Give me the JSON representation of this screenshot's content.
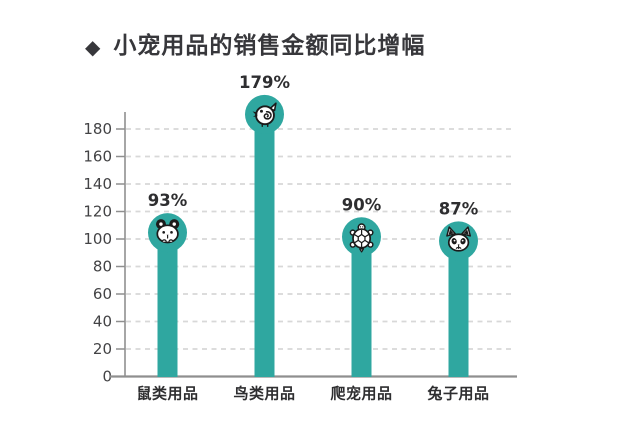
{
  "title": {
    "bullet": "◆",
    "text": "小宠用品的销售金额同比增幅"
  },
  "chart_data": {
    "type": "bar",
    "title": "小宠用品的销售金额同比增幅",
    "categories": [
      "鼠类用品",
      "鸟类用品",
      "爬宠用品",
      "兔子用品"
    ],
    "values": [
      93,
      179,
      90,
      87
    ],
    "value_labels": [
      "93%",
      "179%",
      "90%",
      "87%"
    ],
    "icons": [
      "mouse-icon",
      "bird-icon",
      "turtle-icon",
      "rabbit-icon"
    ],
    "unit": "%",
    "ylim": [
      0,
      180
    ],
    "ytick_step": 20,
    "ytick_labels": [
      "0",
      "20",
      "40",
      "60",
      "80",
      "100",
      "120",
      "140",
      "160",
      "180"
    ],
    "grid": "horizontal-dashed",
    "legend": "none",
    "colors": {
      "bar": "#2FA7A0",
      "value_label": "#2E2E30",
      "category_label": "#2E2E30",
      "tick_label": "#434345",
      "axis": "#8F8F8F",
      "grid": "#D8D8D8",
      "icon_fill": "#FFFFFF",
      "icon_stroke": "#1B1B1B",
      "title": "#37373B",
      "background": "#FFFFFF"
    }
  }
}
